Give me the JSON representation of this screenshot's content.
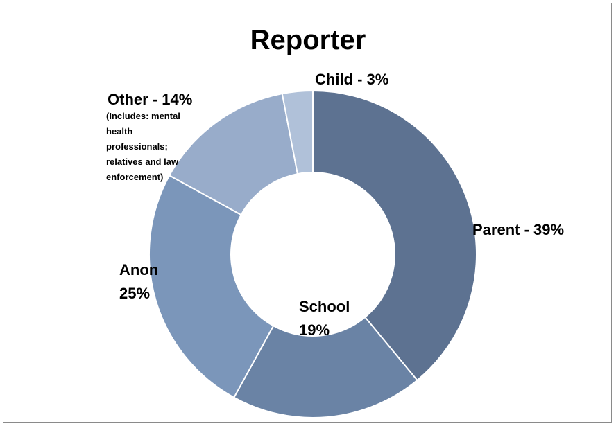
{
  "chart_data": {
    "type": "pie",
    "donut": true,
    "title": "Reporter",
    "slices": [
      {
        "name": "Parent",
        "value": 39,
        "label": "Parent - 39%",
        "color": "#5d7291"
      },
      {
        "name": "School",
        "value": 19,
        "label_line1": "School",
        "label_line2": "19%",
        "color": "#6a83a5"
      },
      {
        "name": "Anon",
        "value": 25,
        "label_line1": "Anon",
        "label_line2": "25%",
        "color": "#7b96ba"
      },
      {
        "name": "Other",
        "value": 14,
        "label": "Other - 14%",
        "note": "(Includes:  mental\nhealth\nprofessionals;\nrelatives and law\nenforcement)",
        "color": "#98acca"
      },
      {
        "name": "Child",
        "value": 3,
        "label": "Child - 3%",
        "color": "#b0c1d9"
      }
    ],
    "legend": "none"
  }
}
